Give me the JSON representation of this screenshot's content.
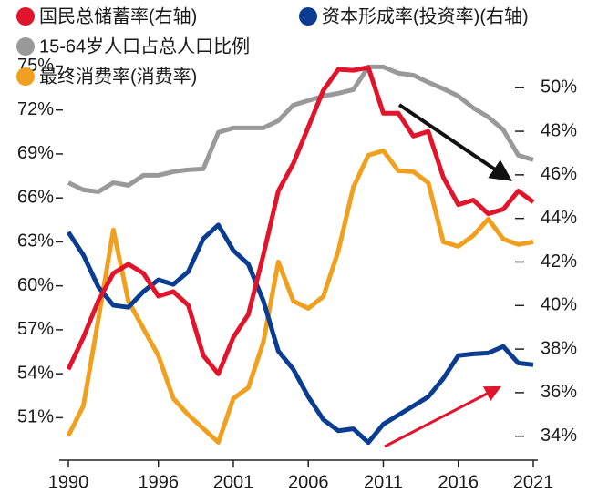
{
  "chart_data": {
    "type": "line",
    "x": [
      1990,
      1991,
      1992,
      1993,
      1994,
      1995,
      1996,
      1997,
      1998,
      1999,
      2000,
      2001,
      2002,
      2003,
      2004,
      2005,
      2006,
      2007,
      2008,
      2009,
      2010,
      2011,
      2012,
      2013,
      2014,
      2015,
      2016,
      2017,
      2018,
      2019,
      2020,
      2021
    ],
    "xlim": [
      1990,
      2021
    ],
    "xticks": [
      1990,
      1996,
      2001,
      2006,
      2011,
      2016,
      2021
    ],
    "ylim": [
      48.1,
      75.9
    ],
    "yticks": [
      {
        "value": 51,
        "label": "51%"
      },
      {
        "value": 54,
        "label": "54%"
      },
      {
        "value": 57,
        "label": "57%"
      },
      {
        "value": 60,
        "label": "60%"
      },
      {
        "value": 63,
        "label": "63%"
      },
      {
        "value": 66,
        "label": "66%"
      },
      {
        "value": 69,
        "label": "69%"
      },
      {
        "value": 72,
        "label": "72%"
      },
      {
        "value": 75,
        "label": "75%"
      }
    ],
    "y2lim": [
      32.9,
      51.6
    ],
    "y2ticks": [
      {
        "value": 34,
        "label": "34%"
      },
      {
        "value": 36,
        "label": "36%"
      },
      {
        "value": 38,
        "label": "38%"
      },
      {
        "value": 40,
        "label": "40%"
      },
      {
        "value": 42,
        "label": "42%"
      },
      {
        "value": 44,
        "label": "44%"
      },
      {
        "value": 46,
        "label": "46%"
      },
      {
        "value": 48,
        "label": "48%"
      },
      {
        "value": 50,
        "label": "50%"
      }
    ],
    "series": [
      {
        "name": "国民总储蓄率(右轴)",
        "color": "#e0142a",
        "axis": "y2",
        "values": [
          37.07,
          38.54,
          40.22,
          41.48,
          41.9,
          41.48,
          40.43,
          40.64,
          40.01,
          37.7,
          36.86,
          38.54,
          39.59,
          42.32,
          45.26,
          46.52,
          48.2,
          49.88,
          50.84,
          50.8,
          50.93,
          48.83,
          48.83,
          47.78,
          47.99,
          45.89,
          44.63,
          44.84,
          44.21,
          44.42,
          45.26,
          44.75
        ]
      },
      {
        "name": "资本形成率(投资率)(右轴)",
        "color": "#0a3d91",
        "axis": "y2",
        "values": [
          43.37,
          42.32,
          40.85,
          40.01,
          39.92,
          40.64,
          41.18,
          40.97,
          41.56,
          43.07,
          43.7,
          42.53,
          41.9,
          40.22,
          37.91,
          37.07,
          35.81,
          34.76,
          34.25,
          34.34,
          33.71,
          34.55,
          34.97,
          35.39,
          35.81,
          36.65,
          37.7,
          37.78,
          37.82,
          38.12,
          37.36,
          37.28
        ]
      },
      {
        "name": "15-64岁人口占总人口比例",
        "color": "#999999",
        "values": [
          67.04,
          66.55,
          66.42,
          67.04,
          66.86,
          67.54,
          67.54,
          67.79,
          67.92,
          67.98,
          70.47,
          70.78,
          70.78,
          70.78,
          71.27,
          72.33,
          72.64,
          72.95,
          73.14,
          73.39,
          74.94,
          74.94,
          74.51,
          74.38,
          73.89,
          73.45,
          72.95,
          72.14,
          71.52,
          70.65,
          68.91,
          68.6
        ]
      },
      {
        "name": "最终消费率(消费率)",
        "color": "#f0a01e",
        "values": [
          49.76,
          51.81,
          57.72,
          63.81,
          58.96,
          57.09,
          55.23,
          52.31,
          51.19,
          50.25,
          49.32,
          52.31,
          53.05,
          56.16,
          61.63,
          58.96,
          58.46,
          59.27,
          62.38,
          66.73,
          68.91,
          69.22,
          67.85,
          67.79,
          67.04,
          63.0,
          62.69,
          63.43,
          64.56,
          63.19,
          62.82,
          63.0
        ]
      }
    ]
  }
}
